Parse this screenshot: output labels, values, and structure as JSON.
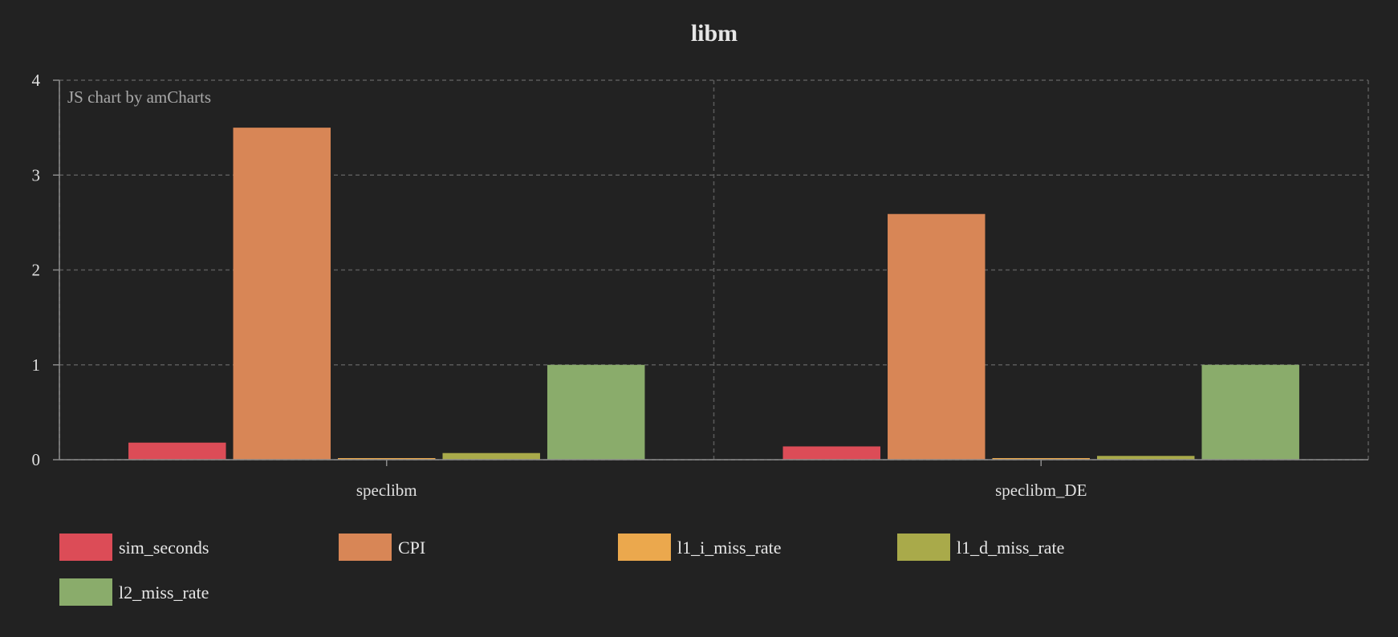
{
  "chart_data": {
    "type": "bar",
    "title": "libm",
    "credit": "JS chart by amCharts",
    "categories": [
      "speclibm",
      "speclibm_DE"
    ],
    "series": [
      {
        "name": "sim_seconds",
        "color": "#dc4c57",
        "values": [
          0.18,
          0.14
        ]
      },
      {
        "name": "CPI",
        "color": "#d88656",
        "values": [
          3.5,
          2.59
        ]
      },
      {
        "name": "l1_i_miss_rate",
        "color": "#eba84d",
        "values": [
          0.01,
          0.01
        ]
      },
      {
        "name": "l1_d_miss_rate",
        "color": "#a9aa4a",
        "values": [
          0.07,
          0.04
        ]
      },
      {
        "name": "l2_miss_rate",
        "color": "#8aac6b",
        "values": [
          1.0,
          1.0
        ]
      }
    ],
    "ylim": [
      0,
      4
    ],
    "yticks": [
      0,
      1,
      2,
      3,
      4
    ],
    "grid": true,
    "legend_position": "bottom",
    "xlabel": "",
    "ylabel": ""
  }
}
